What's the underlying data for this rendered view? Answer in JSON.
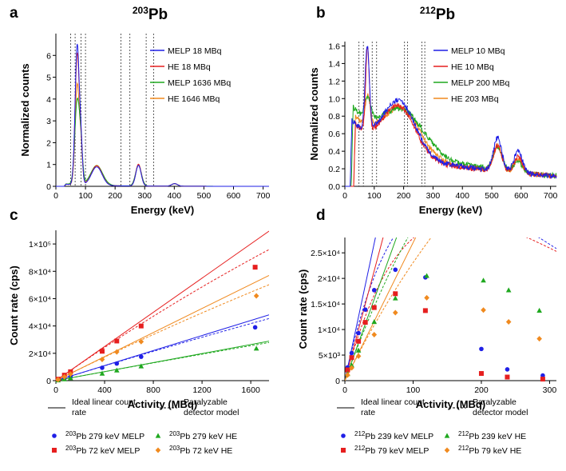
{
  "figure": {
    "panel_letters": [
      "a",
      "b",
      "c",
      "d"
    ],
    "legend_lines": {
      "ideal": "Ideal linear count rate",
      "paralyzable": "Paralyzable detector model"
    }
  },
  "chart_data": [
    {
      "id": "a",
      "type": "line",
      "title_sup": "203",
      "title_base": "Pb",
      "xlabel": "Energy (keV)",
      "ylabel": "Normalized counts",
      "xlim": [
        0,
        720
      ],
      "ylim": [
        0,
        7
      ],
      "xticks": [
        "0",
        "100",
        "200",
        "300",
        "400",
        "500",
        "600",
        "700"
      ],
      "xtick_values": [
        0,
        100,
        200,
        300,
        400,
        500,
        600,
        700
      ],
      "yticks": [
        "0",
        "1",
        "2",
        "3",
        "4",
        "5",
        "6"
      ],
      "ytick_values": [
        0,
        1,
        2,
        3,
        4,
        5,
        6
      ],
      "window_lines_kev": [
        50,
        65,
        85,
        100,
        220,
        250,
        305,
        330
      ],
      "series": [
        {
          "name": "MELP 18 MBq",
          "color": "#1f1fe6",
          "peaks": [
            [
              72,
              6.4,
              7
            ],
            [
              85,
              1.6,
              5
            ],
            [
              138,
              0.85,
              18
            ],
            [
              279,
              0.95,
              9
            ],
            [
              401,
              0.12,
              10
            ]
          ],
          "baseline": 0.1,
          "cutoff": 28
        },
        {
          "name": "HE 18 MBq",
          "color": "#e61f1f",
          "peaks": [
            [
              72,
              6.0,
              7
            ],
            [
              85,
              1.6,
              5
            ],
            [
              138,
              0.9,
              18
            ],
            [
              279,
              1.0,
              9
            ],
            [
              401,
              0.12,
              10
            ]
          ],
          "baseline": 0.1,
          "cutoff": 28
        },
        {
          "name": "MELP 1636 MBq",
          "color": "#1fa81f",
          "peaks": [
            [
              72,
              3.8,
              8
            ],
            [
              85,
              1.4,
              6
            ],
            [
              138,
              0.9,
              20
            ],
            [
              279,
              0.95,
              10
            ],
            [
              401,
              0.12,
              10
            ]
          ],
          "baseline": 0.12,
          "cutoff": 28
        },
        {
          "name": "HE 1646 MBq",
          "color": "#f08a1f",
          "peaks": [
            [
              72,
              4.6,
              7
            ],
            [
              85,
              1.5,
              5
            ],
            [
              138,
              0.92,
              19
            ],
            [
              279,
              1.0,
              9
            ],
            [
              401,
              0.12,
              10
            ]
          ],
          "baseline": 0.1,
          "cutoff": 28
        }
      ]
    },
    {
      "id": "b",
      "type": "line",
      "title_sup": "212",
      "title_base": "Pb",
      "xlabel": "Energy (keV)",
      "ylabel": "Normalized counts",
      "xlim": [
        0,
        720
      ],
      "ylim": [
        0,
        1.65
      ],
      "xticks": [
        "0",
        "100",
        "200",
        "300",
        "400",
        "500",
        "600",
        "700"
      ],
      "xtick_values": [
        0,
        100,
        200,
        300,
        400,
        500,
        600,
        700
      ],
      "yticks": [
        "0.0",
        "0.2",
        "0.4",
        "0.6",
        "0.8",
        "1.0",
        "1.2",
        "1.4",
        "1.6"
      ],
      "ytick_values": [
        0,
        0.2,
        0.4,
        0.6,
        0.8,
        1.0,
        1.2,
        1.4,
        1.6
      ],
      "window_lines_kev": [
        48,
        63,
        93,
        108,
        203,
        213,
        262,
        272
      ],
      "series": [
        {
          "name": "MELP 10 MBq",
          "color": "#1f1fe6",
          "peaks": [
            [
              76,
              0.95,
              7
            ],
            [
              186,
              0.6,
              55
            ],
            [
              520,
              0.38,
              14
            ],
            [
              590,
              0.25,
              14
            ]
          ],
          "baseline": 0.45,
          "cutoff": 18,
          "tail": 0.2
        },
        {
          "name": "HE 10 MBq",
          "color": "#e61f1f",
          "peaks": [
            [
              77,
              0.95,
              6
            ],
            [
              186,
              0.55,
              55
            ],
            [
              520,
              0.3,
              14
            ],
            [
              590,
              0.18,
              14
            ]
          ],
          "baseline": 0.42,
          "cutoff": 30,
          "tail": 0.18
        },
        {
          "name": "MELP 200 MBq",
          "color": "#1fa81f",
          "peaks": [
            [
              78,
              0.25,
              9
            ],
            [
              200,
              0.45,
              70
            ],
            [
              520,
              0.25,
              15
            ],
            [
              590,
              0.12,
              15
            ]
          ],
          "baseline": 0.55,
          "cutoff": 22,
          "tail": 0.25
        },
        {
          "name": "HE 203 MBq",
          "color": "#f08a1f",
          "peaks": [
            [
              78,
              0.35,
              8
            ],
            [
              195,
              0.5,
              60
            ],
            [
              520,
              0.28,
              14
            ],
            [
              590,
              0.15,
              14
            ]
          ],
          "baseline": 0.5,
          "cutoff": 30,
          "tail": 0.2
        }
      ]
    },
    {
      "id": "c",
      "type": "scatter",
      "xlabel": "Activity (MBq)",
      "ylabel": "Count rate (cps)",
      "xlim": [
        0,
        1750
      ],
      "ylim": [
        0,
        110000
      ],
      "xticks": [
        "0",
        "400",
        "800",
        "1200",
        "1600"
      ],
      "xtick_values": [
        0,
        400,
        800,
        1200,
        1600
      ],
      "yticks": [
        "0",
        "2×10⁴",
        "4×10⁴",
        "6×10⁴",
        "8×10⁴",
        "1×10⁵"
      ],
      "ytick_values": [
        0,
        20000,
        40000,
        60000,
        80000,
        100000
      ],
      "series": [
        {
          "name": "203Pb 279 keV MELP",
          "label_sup": "203",
          "label_rest": "Pb 279 keV MELP",
          "color": "#1f1fe6",
          "marker": "circle",
          "x": [
            18,
            70,
            120,
            380,
            500,
            700,
            1636
          ],
          "y": [
            500,
            1700,
            3000,
            9400,
            12500,
            17500,
            39000
          ],
          "slope": 27.5,
          "tau": 1.2e-06
        },
        {
          "name": "203Pb 72 keV MELP",
          "label_sup": "203",
          "label_rest": "Pb 72 keV MELP",
          "color": "#e61f1f",
          "marker": "square",
          "x": [
            18,
            70,
            120,
            380,
            500,
            700,
            1636
          ],
          "y": [
            1100,
            4000,
            6500,
            21500,
            29000,
            40000,
            83000
          ],
          "slope": 62.5,
          "tau": 1.2e-06
        },
        {
          "name": "203Pb 279 keV HE",
          "label_sup": "203",
          "label_rest": "Pb 279 keV HE",
          "color": "#1fa81f",
          "marker": "triangle",
          "x": [
            18,
            70,
            120,
            380,
            500,
            700,
            1646
          ],
          "y": [
            300,
            1100,
            1900,
            5200,
            7500,
            10500,
            23500
          ],
          "slope": 16.5,
          "tau": 1.2e-06
        },
        {
          "name": "203Pb 72 keV HE",
          "label_sup": "203",
          "label_rest": "Pb 72 keV HE",
          "color": "#f08a1f",
          "marker": "diamond",
          "x": [
            18,
            70,
            120,
            380,
            500,
            700,
            1646
          ],
          "y": [
            700,
            2800,
            4800,
            15500,
            21000,
            28500,
            62000
          ],
          "slope": 44.0,
          "tau": 1.2e-06
        }
      ]
    },
    {
      "id": "d",
      "type": "scatter",
      "xlabel": "Activity (MBq)",
      "ylabel": "Count rate (cps)",
      "xlim": [
        0,
        310
      ],
      "ylim": [
        0,
        28000
      ],
      "xticks": [
        "0",
        "100",
        "200",
        "300"
      ],
      "xtick_values": [
        0,
        100,
        200,
        300
      ],
      "yticks": [
        "0",
        "5×10³",
        "1×10⁴",
        "1.5×10⁴",
        "2×10⁴",
        "2.5×10⁴"
      ],
      "ytick_values": [
        0,
        5000,
        10000,
        15000,
        20000,
        25000
      ],
      "series": [
        {
          "name": "212Pb 239 keV MELP",
          "label_sup": "212",
          "label_rest": "Pb 239 keV MELP",
          "color": "#1f1fe6",
          "marker": "circle",
          "x": [
            4,
            10,
            20,
            30,
            43,
            74,
            118,
            200,
            238,
            290
          ],
          "y": [
            2600,
            5400,
            9300,
            13900,
            17700,
            21700,
            20200,
            6200,
            2200,
            1000
          ],
          "slope": 625,
          "tau": 1.04e-05
        },
        {
          "name": "212Pb 79 keV MELP",
          "label_sup": "212",
          "label_rest": "Pb 79 keV MELP",
          "color": "#e61f1f",
          "marker": "square",
          "x": [
            4,
            10,
            20,
            30,
            43,
            74,
            118,
            200,
            238,
            290
          ],
          "y": [
            2100,
            4500,
            7700,
            11400,
            14300,
            17000,
            13700,
            1400,
            700,
            300
          ],
          "slope": 500,
          "tau": 1.17e-05
        },
        {
          "name": "212Pb 239 keV HE",
          "label_sup": "212",
          "label_rest": "Pb 239 keV HE",
          "color": "#1fa81f",
          "marker": "triangle",
          "x": [
            4,
            10,
            20,
            43,
            74,
            120,
            203,
            240,
            285
          ],
          "y": [
            1300,
            3000,
            5900,
            11500,
            16100,
            20500,
            19600,
            17700,
            13700
          ],
          "slope": 370,
          "tau": 5.8e-06
        },
        {
          "name": "212Pb 79 keV HE",
          "label_sup": "212",
          "label_rest": "Pb 79 keV HE",
          "color": "#f08a1f",
          "marker": "diamond",
          "x": [
            4,
            10,
            20,
            43,
            74,
            120,
            203,
            240,
            285
          ],
          "y": [
            1100,
            2500,
            4800,
            9000,
            13300,
            16200,
            13800,
            11500,
            8200
          ],
          "slope": 270,
          "tau": 5.8e-06
        }
      ]
    }
  ]
}
